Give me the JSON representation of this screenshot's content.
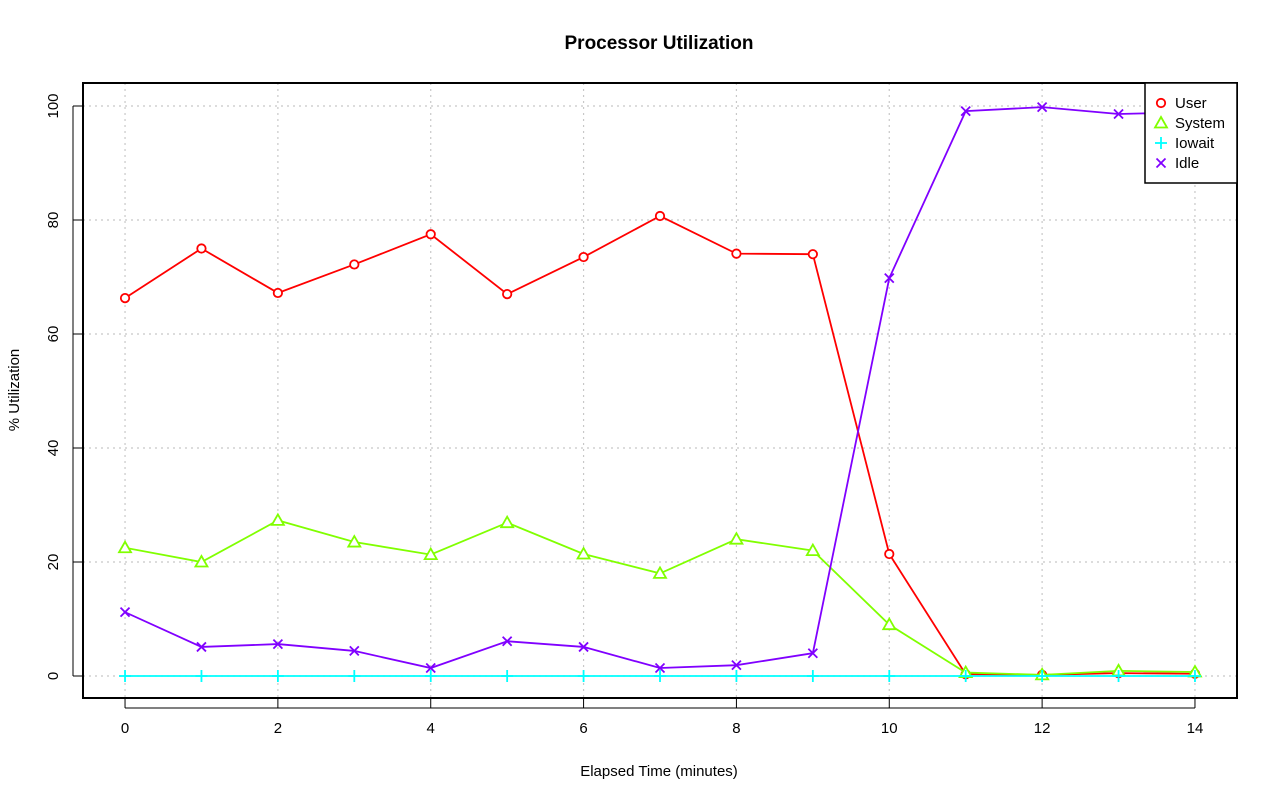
{
  "chart_data": {
    "type": "line",
    "title": "Processor Utilization",
    "xlabel": "Elapsed Time (minutes)",
    "ylabel": "% Utilization",
    "xlim": [
      -0.55,
      14.55
    ],
    "ylim": [
      -3.85,
      100
    ],
    "xticks": [
      0,
      2,
      4,
      6,
      8,
      10,
      12,
      14
    ],
    "yticks": [
      0,
      20,
      40,
      60,
      80,
      100
    ],
    "grid": true,
    "legend_position": "top-right",
    "x": [
      0,
      1,
      2,
      3,
      4,
      5,
      6,
      7,
      8,
      9,
      10,
      11,
      12,
      13,
      14
    ],
    "series": [
      {
        "name": "User",
        "color": "#ff0000",
        "marker": "circle",
        "values": [
          66.3,
          75.0,
          67.2,
          72.2,
          77.5,
          67.0,
          73.5,
          80.7,
          74.1,
          74.0,
          21.4,
          0.3,
          0.2,
          0.5,
          0.4
        ]
      },
      {
        "name": "System",
        "color": "#80ff00",
        "marker": "triangle",
        "values": [
          22.5,
          20.0,
          27.3,
          23.5,
          21.3,
          26.9,
          21.4,
          18.0,
          24.0,
          22.0,
          9.0,
          0.6,
          0.2,
          0.9,
          0.7
        ]
      },
      {
        "name": "Iowait",
        "color": "#00ffff",
        "marker": "plus",
        "values": [
          0,
          0,
          0,
          0,
          0,
          0,
          0,
          0,
          0,
          0,
          0,
          0,
          0,
          0,
          0
        ]
      },
      {
        "name": "Idle",
        "color": "#8000ff",
        "marker": "cross",
        "values": [
          11.2,
          5.1,
          5.6,
          4.4,
          1.4,
          6.1,
          5.1,
          1.4,
          1.9,
          4.0,
          69.8,
          99.1,
          99.8,
          98.6,
          98.9
        ]
      }
    ]
  }
}
